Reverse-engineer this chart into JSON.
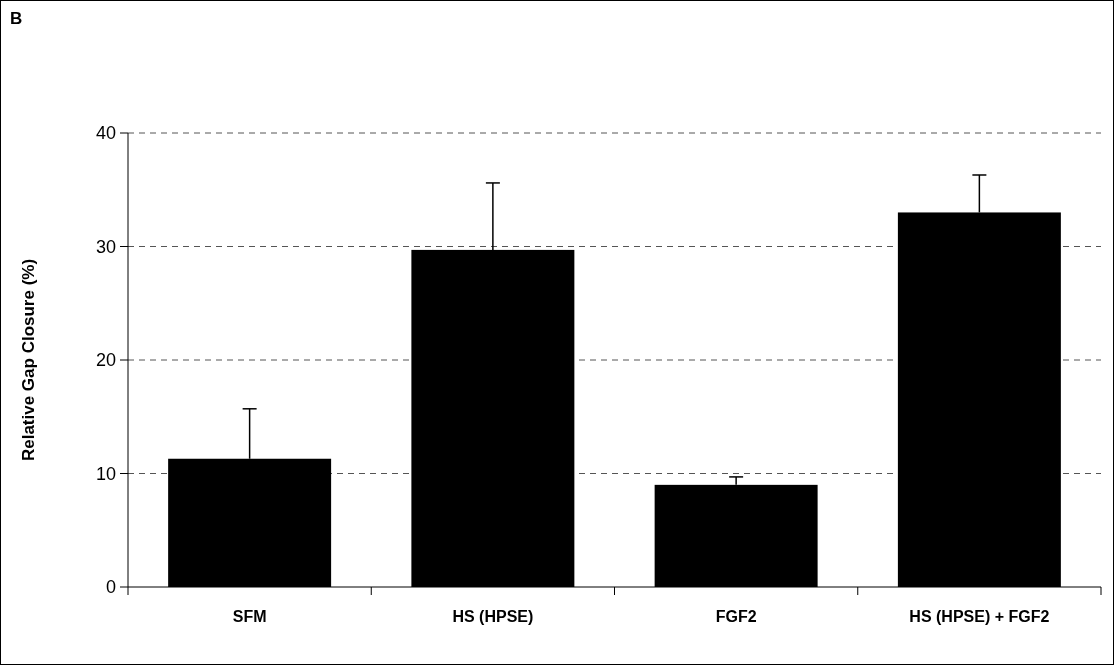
{
  "chart_data": {
    "type": "bar",
    "title": "B",
    "ylabel": "Relative Gap Closure (%)",
    "categories": [
      "SFM",
      "HS (HPSE)",
      "FGF2",
      "HS (HPSE) + FGF2"
    ],
    "values": [
      11.3,
      29.7,
      9.0,
      33.0
    ],
    "errors": [
      [
        11.3,
        15.7
      ],
      [
        29.7,
        35.6
      ],
      [
        9.0,
        9.7
      ],
      [
        33.0,
        36.3
      ]
    ],
    "color": "#000000",
    "ylim": [
      0,
      40
    ],
    "yticks": [
      0,
      10,
      20,
      30,
      40
    ],
    "grid": "y"
  }
}
